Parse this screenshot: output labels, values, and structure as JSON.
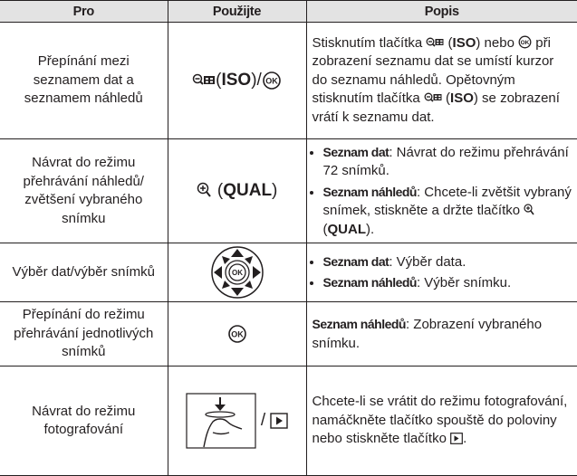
{
  "table": {
    "header": [
      "Pro",
      "Použijte",
      "Popis"
    ],
    "icon_ok": "OK",
    "rows": [
      {
        "pro": "Přepínání mezi seznamem dat a seznamem náhledů",
        "use": [
          "(",
          "ISO",
          ")/"
        ],
        "desc": [
          "Stisknutím tlačítka ",
          " (",
          "ISO",
          ") nebo ",
          " při zobrazení seznamu dat se umístí kurzor do seznamu náhledů. Opětovným stisknutím tlačítka ",
          " (",
          "ISO",
          ") se zobrazení vrátí k seznamu dat."
        ]
      },
      {
        "pro": "Návrat do režimu přehrávání náhledů/ zvětšení vybraného snímku",
        "use": [
          "(",
          "QUAL",
          ")"
        ],
        "bullets": [
          [
            "Seznam dat",
            ": Návrat do režimu přehrávání 72 snímků."
          ],
          [
            "Seznam náhledů",
            ": Chcete-li zvětšit vybraný snímek, stiskněte a držte tlačítko ",
            " (",
            "QUAL",
            ")."
          ]
        ]
      },
      {
        "pro": "Výběr dat/výběr snímků",
        "bullets": [
          [
            "Seznam dat",
            ": Výběr data."
          ],
          [
            "Seznam náhledů",
            ": Výběr snímku."
          ]
        ]
      },
      {
        "pro": "Přepínání do režimu přehrávání jednotlivých snímků",
        "desc": [
          "Seznam náhledů",
          ": Zobrazení vybraného snímku."
        ]
      },
      {
        "pro": "Návrat do režimu fotografování",
        "use": [
          "/"
        ],
        "desc": [
          "Chcete-li se vrátit do režimu fotografování, namáčkněte tlačítko spouště do poloviny nebo stiskněte tlačítko ",
          "."
        ]
      }
    ]
  }
}
